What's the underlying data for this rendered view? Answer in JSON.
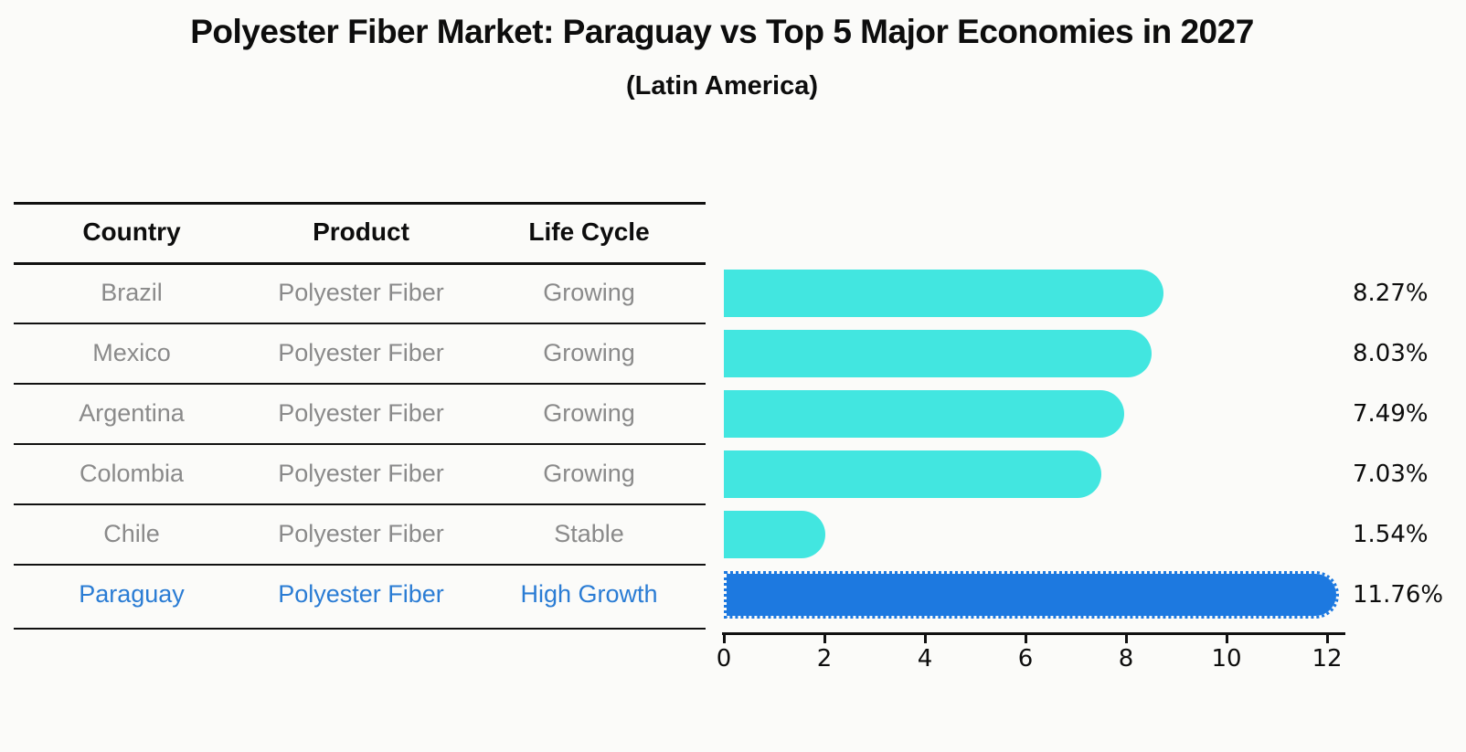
{
  "title": "Polyester Fiber Market: Paraguay vs Top 5 Major Economies in 2027",
  "subtitle": "(Latin America)",
  "table": {
    "headers": {
      "country": "Country",
      "product": "Product",
      "life_cycle": "Life Cycle"
    },
    "rows": [
      {
        "country": "Brazil",
        "product": "Polyester Fiber",
        "life_cycle": "Growing",
        "highlight": false
      },
      {
        "country": "Mexico",
        "product": "Polyester Fiber",
        "life_cycle": "Growing",
        "highlight": false
      },
      {
        "country": "Argentina",
        "product": "Polyester Fiber",
        "life_cycle": "Growing",
        "highlight": false
      },
      {
        "country": "Colombia",
        "product": "Polyester Fiber",
        "life_cycle": "Growing",
        "highlight": false
      },
      {
        "country": "Chile",
        "product": "Polyester Fiber",
        "life_cycle": "Stable",
        "highlight": false
      },
      {
        "country": "Paraguay",
        "product": "Polyester Fiber",
        "life_cycle": "High Growth",
        "highlight": true
      }
    ]
  },
  "chart_data": {
    "type": "bar",
    "orientation": "horizontal",
    "title": "Polyester Fiber Market: Paraguay vs Top 5 Major Economies in 2027 (Latin America)",
    "categories": [
      "Brazil",
      "Mexico",
      "Argentina",
      "Colombia",
      "Chile",
      "Paraguay"
    ],
    "values": [
      8.27,
      8.03,
      7.49,
      7.03,
      1.54,
      11.76
    ],
    "value_labels": [
      "8.27%",
      "8.03%",
      "7.49%",
      "7.03%",
      "1.54%",
      "11.76%"
    ],
    "highlight_index": 5,
    "xlim": [
      0,
      12
    ],
    "xticks": [
      0,
      2,
      4,
      6,
      8,
      10,
      12
    ],
    "grid": false,
    "legend": false
  },
  "colors": {
    "bar_cyan": "#42e6e0",
    "bar_blue": "#1d79e0",
    "row_gray": "#8a8a8a",
    "row_blue": "#2a7cd4"
  }
}
